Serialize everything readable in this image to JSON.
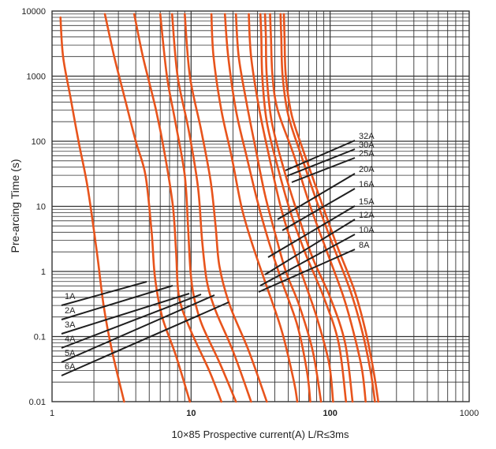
{
  "chart_data": {
    "type": "line",
    "xlabel": "10×85 Prospective current(A) L/R≤3ms",
    "ylabel": "Pre-arcing Time (s)",
    "x_scale": "log",
    "y_scale": "log",
    "xlim": [
      1,
      1000
    ],
    "ylim": [
      0.01,
      10000
    ],
    "x_ticks": [
      "1",
      "10",
      "100",
      "1000"
    ],
    "y_ticks": [
      "10000",
      "1000",
      "100",
      "10",
      "1",
      "0.1",
      "0.01"
    ],
    "grid": true,
    "curve_color": "#e8541c",
    "series": [
      {
        "name": "1A",
        "points": [
          [
            1.15,
            8000
          ],
          [
            1.2,
            2000
          ],
          [
            1.35,
            500
          ],
          [
            1.55,
            100
          ],
          [
            1.8,
            20
          ],
          [
            2.1,
            2
          ],
          [
            2.35,
            0.3
          ],
          [
            2.7,
            0.06
          ],
          [
            3.3,
            0.01
          ]
        ]
      },
      {
        "name": "2A",
        "points": [
          [
            2.4,
            9000
          ],
          [
            2.8,
            2000
          ],
          [
            3.3,
            500
          ],
          [
            4,
            100
          ],
          [
            4.7,
            30
          ],
          [
            5.2,
            4
          ],
          [
            5.5,
            0.8
          ],
          [
            6.2,
            0.2
          ],
          [
            7.8,
            0.05
          ],
          [
            9.8,
            0.01
          ]
        ]
      },
      {
        "name": "3A",
        "points": [
          [
            3.9,
            9000
          ],
          [
            4.5,
            2000
          ],
          [
            5.6,
            300
          ],
          [
            6.5,
            60
          ],
          [
            7.4,
            10
          ],
          [
            7.8,
            2
          ],
          [
            8.2,
            0.4
          ],
          [
            10,
            0.12
          ],
          [
            13.5,
            0.03
          ],
          [
            16.5,
            0.01
          ]
        ]
      },
      {
        "name": "4A",
        "points": [
          [
            6,
            9000
          ],
          [
            6.7,
            1000
          ],
          [
            7.7,
            200
          ],
          [
            9,
            30
          ],
          [
            9.5,
            5
          ],
          [
            9.9,
            1
          ],
          [
            10.5,
            0.4
          ],
          [
            12,
            0.15
          ],
          [
            16,
            0.04
          ],
          [
            21,
            0.01
          ]
        ]
      },
      {
        "name": "5A",
        "points": [
          [
            7.3,
            9000
          ],
          [
            8,
            1000
          ],
          [
            9.6,
            150
          ],
          [
            11.2,
            20
          ],
          [
            12,
            3
          ],
          [
            13,
            0.7
          ],
          [
            15,
            0.25
          ],
          [
            20,
            0.06
          ],
          [
            27,
            0.01
          ]
        ]
      },
      {
        "name": "6A",
        "points": [
          [
            9,
            9000
          ],
          [
            9.8,
            1000
          ],
          [
            11.8,
            150
          ],
          [
            13.8,
            25
          ],
          [
            15,
            5
          ],
          [
            16,
            1.2
          ],
          [
            19,
            0.3
          ],
          [
            26,
            0.06
          ],
          [
            35,
            0.01
          ]
        ]
      },
      {
        "name": "8A",
        "points": [
          [
            14,
            9000
          ],
          [
            14.5,
            2000
          ],
          [
            16.5,
            300
          ],
          [
            19.5,
            60
          ],
          [
            23,
            10
          ],
          [
            27,
            3
          ],
          [
            34,
            0.7
          ],
          [
            45,
            0.12
          ],
          [
            55,
            0.02
          ],
          [
            58,
            0.01
          ]
        ]
      },
      {
        "name": "10A",
        "points": [
          [
            17.5,
            9000
          ],
          [
            18.5,
            2000
          ],
          [
            21,
            300
          ],
          [
            25,
            60
          ],
          [
            30,
            12
          ],
          [
            36,
            3
          ],
          [
            45,
            0.7
          ],
          [
            58,
            0.15
          ],
          [
            68,
            0.03
          ],
          [
            72,
            0.01
          ]
        ]
      },
      {
        "name": "12A",
        "points": [
          [
            21,
            9000
          ],
          [
            22,
            2000
          ],
          [
            25,
            400
          ],
          [
            29,
            80
          ],
          [
            34,
            15
          ],
          [
            40,
            4
          ],
          [
            48,
            1
          ],
          [
            60,
            0.3
          ],
          [
            75,
            0.06
          ],
          [
            86,
            0.01
          ]
        ]
      },
      {
        "name": "15A",
        "points": [
          [
            26,
            9000
          ],
          [
            27,
            2000
          ],
          [
            31,
            300
          ],
          [
            37,
            50
          ],
          [
            44,
            10
          ],
          [
            52,
            3
          ],
          [
            64,
            0.8
          ],
          [
            80,
            0.2
          ],
          [
            98,
            0.04
          ],
          [
            105,
            0.01
          ]
        ]
      },
      {
        "name": "16A",
        "points": [
          [
            31.5,
            9000
          ],
          [
            32,
            4000
          ],
          [
            32.5,
            1000
          ],
          [
            35,
            200
          ],
          [
            42,
            40
          ],
          [
            52,
            8
          ],
          [
            67,
            1.8
          ],
          [
            90,
            0.4
          ],
          [
            115,
            0.08
          ],
          [
            130,
            0.01
          ]
        ]
      },
      {
        "name": "20A",
        "points": [
          [
            34,
            9000
          ],
          [
            34.5,
            4000
          ],
          [
            35,
            1000
          ],
          [
            38,
            200
          ],
          [
            46,
            40
          ],
          [
            58,
            8
          ],
          [
            75,
            1.6
          ],
          [
            100,
            0.4
          ],
          [
            128,
            0.08
          ],
          [
            145,
            0.01
          ]
        ]
      },
      {
        "name": "25A",
        "points": [
          [
            37,
            9000
          ],
          [
            37.5,
            4000
          ],
          [
            38.5,
            1000
          ],
          [
            42,
            300
          ],
          [
            55,
            60
          ],
          [
            72,
            10
          ],
          [
            95,
            2
          ],
          [
            125,
            0.4
          ],
          [
            150,
            0.1
          ],
          [
            170,
            0.03
          ],
          [
            180,
            0.01
          ]
        ]
      },
      {
        "name": "30A",
        "points": [
          [
            44,
            9000
          ],
          [
            44.5,
            4000
          ],
          [
            45.5,
            1000
          ],
          [
            50,
            250
          ],
          [
            62,
            60
          ],
          [
            80,
            12
          ],
          [
            105,
            2.5
          ],
          [
            140,
            0.5
          ],
          [
            170,
            0.12
          ],
          [
            195,
            0.03
          ],
          [
            210,
            0.01
          ]
        ]
      },
      {
        "name": "32A",
        "points": [
          [
            46.5,
            9000
          ],
          [
            47,
            4000
          ],
          [
            48,
            1000
          ],
          [
            53,
            250
          ],
          [
            66,
            60
          ],
          [
            86,
            12
          ],
          [
            112,
            2.5
          ],
          [
            150,
            0.5
          ],
          [
            180,
            0.12
          ],
          [
            205,
            0.03
          ],
          [
            222,
            0.01
          ]
        ]
      }
    ],
    "legend_left": [
      "1A",
      "2A",
      "3A",
      "4A",
      "5A",
      "6A"
    ],
    "legend_right": [
      "32A",
      "30A",
      "25A",
      "20A",
      "16A",
      "15A",
      "12A",
      "10A",
      "8A"
    ]
  }
}
